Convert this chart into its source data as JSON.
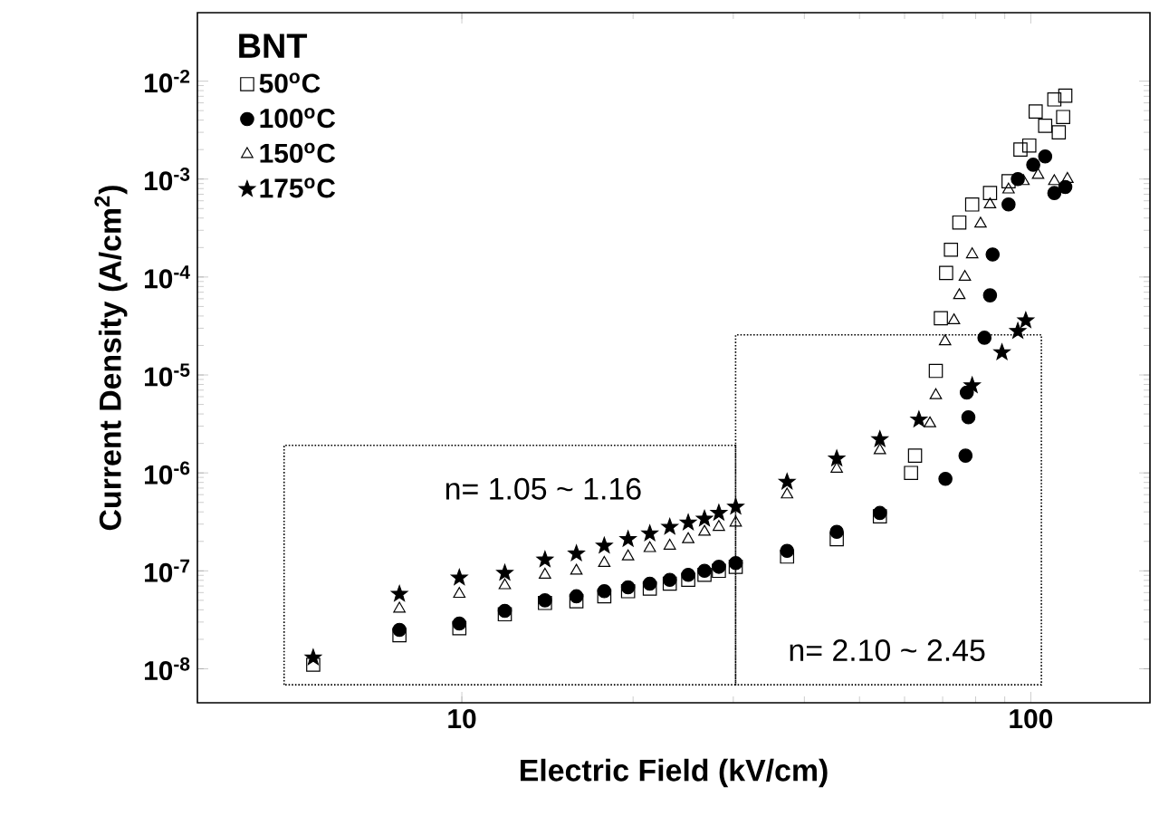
{
  "chart_data": {
    "type": "scatter",
    "xlabel": "Electric Field (kV/cm)",
    "ylabel": "Current Density (A/cm$^{2}$)",
    "legend_title": "BNT",
    "log": "xy",
    "legend": "top left",
    "xlim": [
      3.43,
      162
    ],
    "ylim": [
      4.5e-09,
      0.05
    ],
    "xticks": [
      10,
      100
    ],
    "yticks": [
      {
        "value": 1e-08,
        "label": "10$^{-8}$"
      },
      {
        "value": 1e-07,
        "label": "10$^{-7}$"
      },
      {
        "value": 1e-06,
        "label": "10$^{-6}$"
      },
      {
        "value": 1e-05,
        "label": "10$^{-5}$"
      },
      {
        "value": 0.0001,
        "label": "10$^{-4}$"
      },
      {
        "value": 0.001,
        "label": "10$^{-3}$"
      },
      {
        "value": 0.01,
        "label": "10$^{-2}$"
      }
    ],
    "annotations": [
      "n= 1.05 ~ 1.16",
      "n= 2.10 ~ 2.45"
    ],
    "series": [
      {
        "name": "50$^{o}$C",
        "color": "#000000",
        "marker": "square",
        "x": [
          5.48,
          7.77,
          9.9,
          11.9,
          14.0,
          15.9,
          17.8,
          19.6,
          21.4,
          23.2,
          25.0,
          26.7,
          28.3,
          30.3,
          37.3,
          45.6,
          54.3,
          61.6,
          62.6,
          68.1,
          69.5,
          71.0,
          72.4,
          74.9,
          78.9,
          84.8,
          91.4,
          95.9,
          99.4,
          102,
          106,
          110,
          112,
          114,
          115
        ],
        "values": [
          1.1e-08,
          2.2e-08,
          2.6e-08,
          3.6e-08,
          4.7e-08,
          4.9e-08,
          5.5e-08,
          6.2e-08,
          6.6e-08,
          7.4e-08,
          8.1e-08,
          9.1e-08,
          1e-07,
          1.1e-07,
          1.4e-07,
          2.1e-07,
          3.6e-07,
          1e-06,
          1.5e-06,
          1.1e-05,
          3.8e-05,
          0.00011,
          0.00019,
          0.00036,
          0.00055,
          0.00072,
          0.00095,
          0.002,
          0.0022,
          0.0049,
          0.0035,
          0.0065,
          0.003,
          0.0043,
          0.0071
        ]
      },
      {
        "name": "100$^{o}$C",
        "color": "#000000",
        "marker": "circle",
        "x": [
          7.77,
          9.9,
          11.9,
          14.0,
          15.9,
          17.8,
          19.6,
          21.4,
          23.2,
          25.0,
          26.7,
          28.3,
          30.3,
          37.3,
          45.6,
          54.3,
          70.8,
          76.8,
          77.7,
          77.2,
          82.9,
          84.8,
          85.7,
          91.4,
          94.9,
          101,
          106,
          110,
          115
        ],
        "values": [
          2.5e-08,
          2.9e-08,
          3.9e-08,
          5e-08,
          5.5e-08,
          6.2e-08,
          6.8e-08,
          7.4e-08,
          8.1e-08,
          9.1e-08,
          1e-07,
          1.1e-07,
          1.2e-07,
          1.6e-07,
          2.5e-07,
          3.9e-07,
          8.7e-07,
          1.5e-06,
          3.7e-06,
          6.6e-06,
          2.4e-05,
          6.5e-05,
          0.00017,
          0.00055,
          0.001,
          0.0014,
          0.0017,
          0.00072,
          0.00083
        ]
      },
      {
        "name": "150$^{o}$C",
        "color": "#000000",
        "marker": "triangle",
        "x": [
          7.77,
          9.9,
          11.9,
          14.0,
          15.9,
          17.8,
          19.6,
          21.4,
          23.2,
          25.0,
          26.7,
          28.3,
          30.3,
          37.3,
          45.6,
          54.3,
          66.5,
          68.1,
          70.7,
          73.3,
          74.9,
          76.6,
          78.9,
          81.6,
          84.8,
          91.4,
          97.1,
          103,
          110,
          116
        ],
        "values": [
          4.1e-08,
          5.8e-08,
          7.1e-08,
          9.1e-08,
          1e-07,
          1.2e-07,
          1.4e-07,
          1.7e-07,
          1.8e-07,
          2.1e-07,
          2.5e-07,
          2.8e-07,
          3.1e-07,
          6e-07,
          1.1e-06,
          1.7e-06,
          3.2e-06,
          6.2e-06,
          2.2e-05,
          3.6e-05,
          6.5e-05,
          0.0001,
          0.00017,
          0.00035,
          0.00055,
          0.00078,
          0.00095,
          0.0011,
          0.00095,
          0.001
        ]
      },
      {
        "name": "175$^{o}$C",
        "color": "#000000",
        "marker": "star",
        "x": [
          5.48,
          7.77,
          9.9,
          11.9,
          14.0,
          15.9,
          17.8,
          19.6,
          21.4,
          23.2,
          25.0,
          26.7,
          28.3,
          30.3,
          37.3,
          45.6,
          54.3,
          63.6,
          78.9,
          89,
          94.9,
          98.0
        ],
        "values": [
          1.3e-08,
          5.8e-08,
          8.5e-08,
          9.5e-08,
          1.3e-07,
          1.5e-07,
          1.8e-07,
          2.1e-07,
          2.4e-07,
          2.8e-07,
          3.1e-07,
          3.4e-07,
          3.9e-07,
          4.5e-07,
          8.1e-07,
          1.4e-06,
          2.2e-06,
          3.5e-06,
          7.8e-06,
          1.7e-05,
          2.8e-05,
          3.6e-05
        ]
      }
    ]
  }
}
